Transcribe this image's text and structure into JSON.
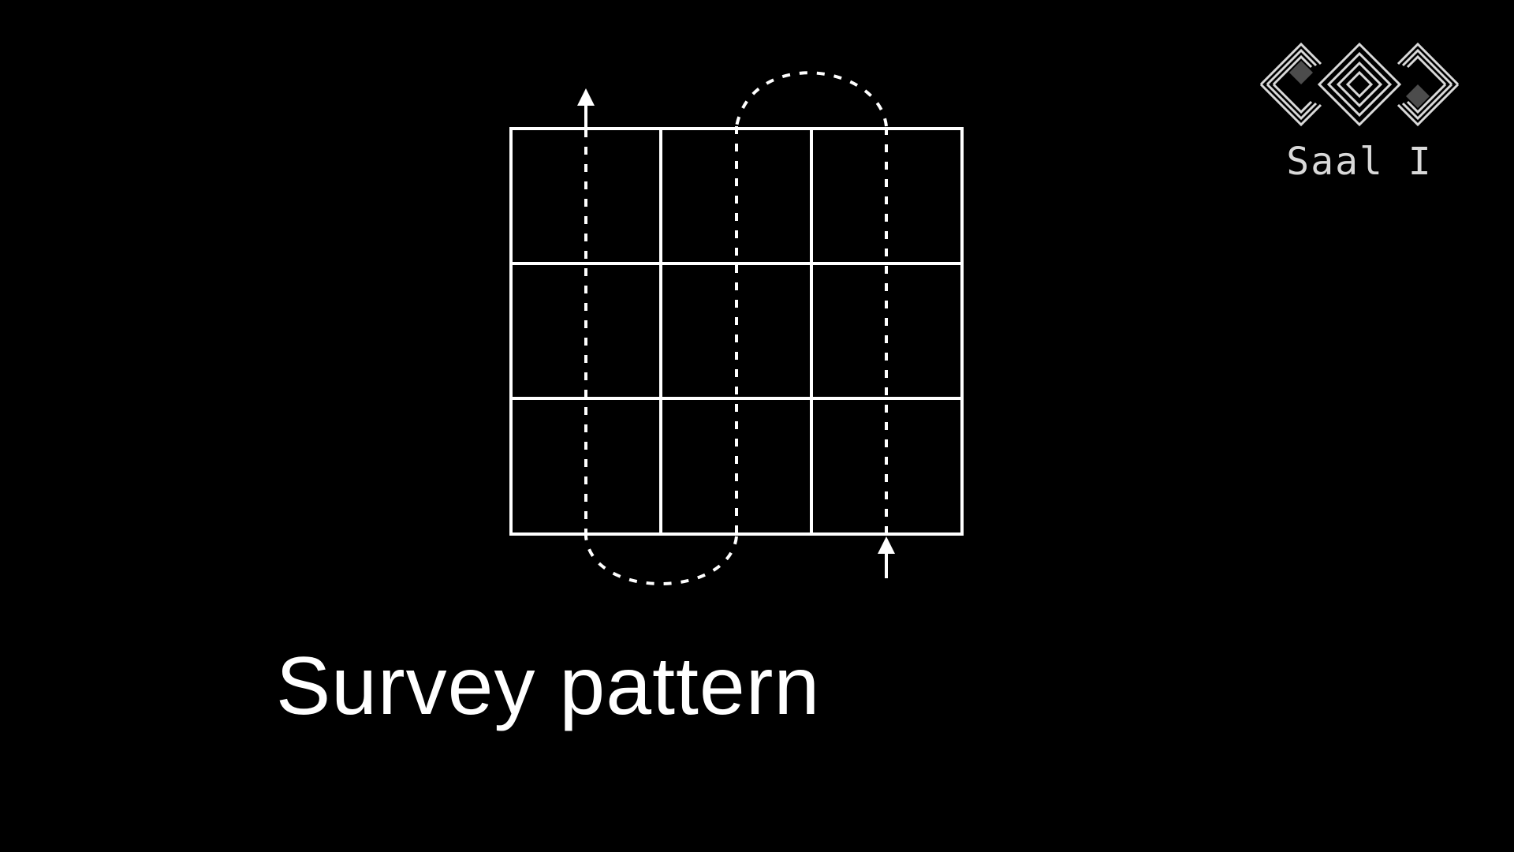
{
  "slide": {
    "title": "Survey pattern"
  },
  "logo": {
    "label": "Saal I",
    "icon": "conference-logo-icon"
  },
  "diagram": {
    "grid_rows": 3,
    "grid_cols": 3,
    "path_style": "dashed",
    "line_color": "#ffffff",
    "background_color": "#000000"
  }
}
